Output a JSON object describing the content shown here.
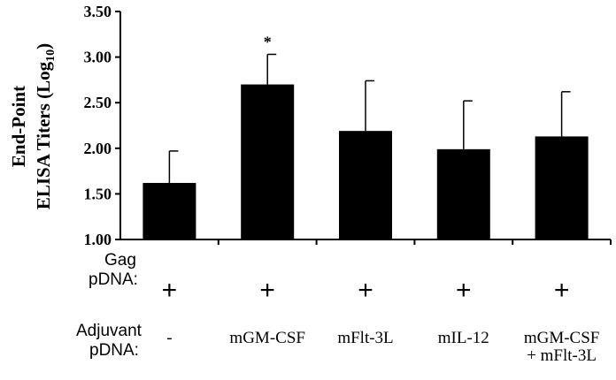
{
  "chart_data": {
    "type": "bar",
    "categories": [
      "-",
      "mGM-CSF",
      "mFlt-3L",
      "mIL-12",
      "mGM-CSF + mFlt-3L"
    ],
    "values": [
      1.62,
      2.7,
      2.19,
      1.99,
      2.13
    ],
    "error_upper": [
      0.35,
      0.33,
      0.55,
      0.53,
      0.49
    ],
    "significance": [
      "",
      "*",
      "",
      "",
      ""
    ],
    "ylabel_line1": "End-Point",
    "ylabel_line2": "ELISA Titers (Log",
    "ylabel_subscript": "10",
    "ylabel_close": ")",
    "ylim": [
      1.0,
      3.5
    ],
    "yticks": [
      "1.00",
      "1.50",
      "2.00",
      "2.50",
      "3.00",
      "3.50"
    ],
    "grid": false,
    "bar_color": "#000000"
  },
  "table": {
    "gag_label_line1": "Gag",
    "gag_label_line2": "pDNA:",
    "gag_values": [
      "+",
      "+",
      "+",
      "+",
      "+"
    ],
    "adjuvant_label_line1": "Adjuvant",
    "adjuvant_label_line2": "pDNA:",
    "adjuvant_values": [
      [
        "-"
      ],
      [
        "mGM-CSF"
      ],
      [
        "mFlt-3L"
      ],
      [
        "mIL-12"
      ],
      [
        "mGM-CSF",
        "+ mFlt-3L"
      ]
    ]
  }
}
